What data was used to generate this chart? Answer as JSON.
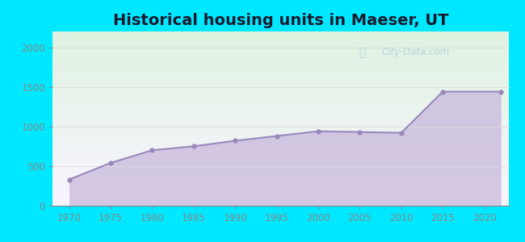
{
  "title": "Historical housing units in Maeser, UT",
  "years": [
    1970,
    1975,
    1980,
    1985,
    1990,
    1995,
    2000,
    2005,
    2010,
    2015,
    2022
  ],
  "values": [
    330,
    540,
    700,
    750,
    820,
    880,
    940,
    930,
    920,
    1440,
    1440
  ],
  "marker_color": "#9888bb",
  "fill_color": "#c8b8dc",
  "fill_alpha": 0.75,
  "background_outer": "#00e8ff",
  "bg_top_color": "#dff2e0",
  "bg_bottom_color": "#f8f4ff",
  "title_color": "#1a1a2e",
  "axis_color": "#888888",
  "grid_color": "#dddddd",
  "watermark_text": "City-Data.com",
  "watermark_color": "#aaccdd",
  "xlim": [
    1968,
    2023
  ],
  "ylim": [
    0,
    2200
  ],
  "yticks": [
    0,
    500,
    1000,
    1500,
    2000
  ],
  "xticks": [
    1970,
    1975,
    1980,
    1985,
    1990,
    1995,
    2000,
    2005,
    2010,
    2015,
    2020
  ],
  "title_fontsize": 14,
  "tick_fontsize": 8.5
}
